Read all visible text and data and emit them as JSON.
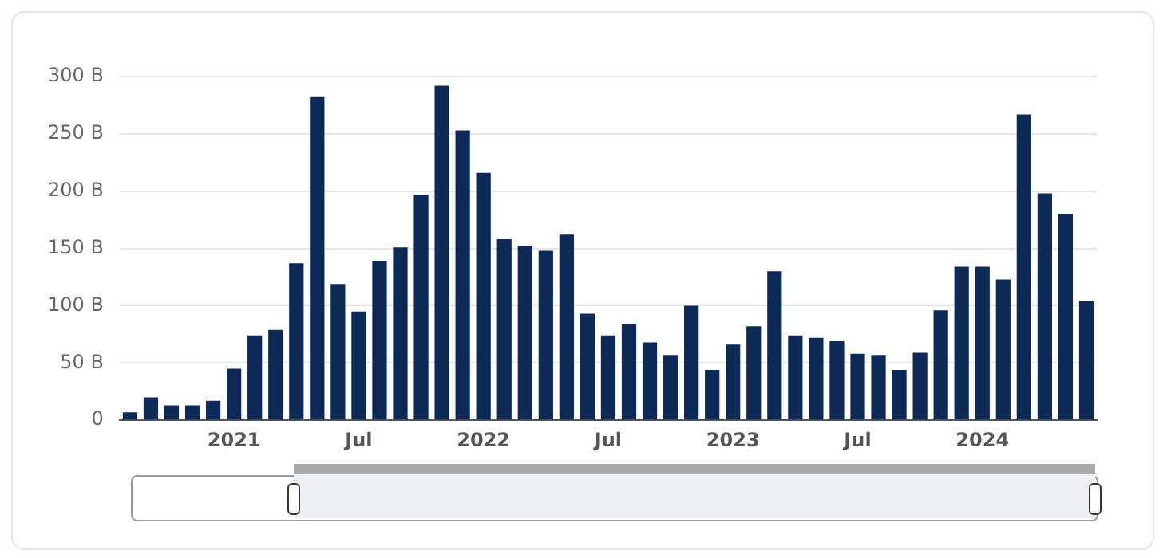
{
  "chart_data": {
    "type": "bar",
    "categories": [
      null,
      null,
      null,
      null,
      null,
      "2021",
      null,
      null,
      null,
      null,
      null,
      "Jul",
      null,
      null,
      null,
      null,
      null,
      "2022",
      null,
      null,
      null,
      null,
      null,
      "Jul",
      null,
      null,
      null,
      null,
      null,
      "2023",
      null,
      null,
      null,
      null,
      null,
      "Jul",
      null,
      null,
      null,
      null,
      null,
      "2024",
      null,
      null,
      null,
      null,
      null
    ],
    "values": [
      7,
      20,
      13,
      13,
      17,
      45,
      74,
      79,
      137,
      282,
      119,
      95,
      139,
      151,
      197,
      292,
      253,
      216,
      158,
      152,
      148,
      162,
      93,
      74,
      84,
      68,
      57,
      100,
      44,
      66,
      82,
      130,
      74,
      72,
      69,
      58,
      57,
      44,
      59,
      96,
      134,
      134,
      123,
      267,
      198,
      180,
      104
    ],
    "color": "#0c2a55",
    "ylim": [
      0,
      300
    ],
    "yticks": [
      {
        "value": 0,
        "label": "0"
      },
      {
        "value": 50,
        "label": "50 B"
      },
      {
        "value": 100,
        "label": "100 B"
      },
      {
        "value": 150,
        "label": "150 B"
      },
      {
        "value": 200,
        "label": "200 B"
      },
      {
        "value": 250,
        "label": "250 B"
      },
      {
        "value": 300,
        "label": "300 B"
      }
    ],
    "grid": "y"
  }
}
